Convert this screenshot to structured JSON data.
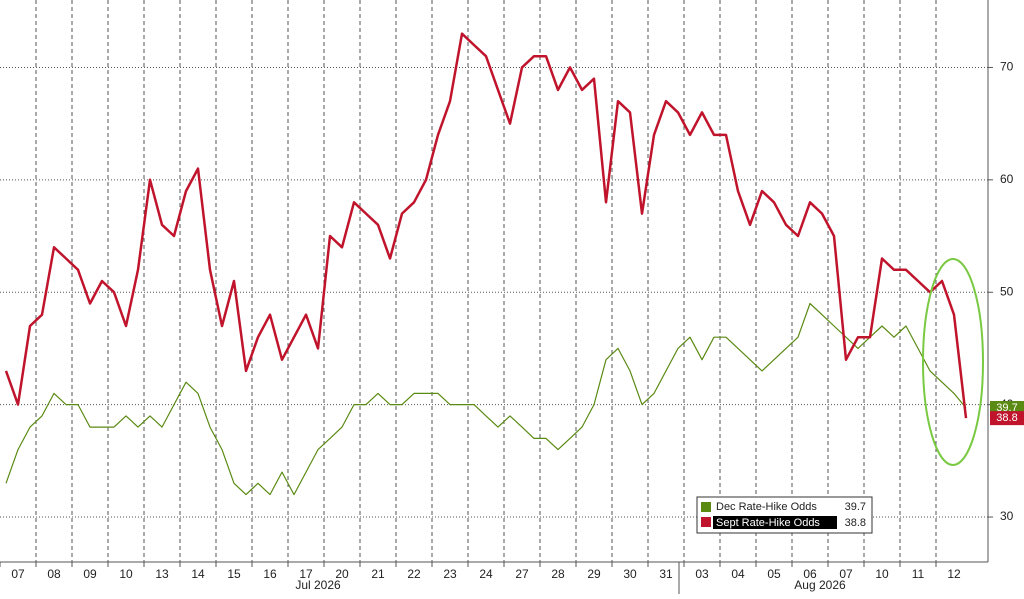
{
  "chart_data": {
    "type": "line",
    "categories": [
      "07",
      null,
      null,
      "08",
      null,
      null,
      "09",
      null,
      null,
      "10",
      null,
      null,
      "13",
      null,
      null,
      "14",
      null,
      null,
      "15",
      null,
      null,
      "16",
      null,
      null,
      "17",
      null,
      null,
      "20",
      null,
      null,
      "21",
      null,
      null,
      "22",
      null,
      null,
      "23",
      null,
      null,
      "24",
      null,
      null,
      "27",
      null,
      null,
      "28",
      null,
      null,
      "29",
      null,
      null,
      "30",
      null,
      null,
      "31",
      null,
      null,
      "03",
      null,
      null,
      "04",
      null,
      null,
      "05",
      null,
      null,
      "06",
      null,
      null,
      "07",
      null,
      null,
      "10",
      null,
      null,
      "11",
      null,
      null,
      "12",
      null,
      null
    ],
    "month_labels": [
      "Jul 2026",
      "Aug 2026"
    ],
    "series": [
      {
        "name": "Dec Rate-Hike Odds",
        "color": "#5a8a12",
        "values": [
          33,
          36,
          38,
          39,
          41,
          40,
          40,
          38,
          38,
          38,
          39,
          38,
          39,
          38,
          40,
          42,
          41,
          38,
          36,
          33,
          32,
          33,
          32,
          34,
          32,
          34,
          36,
          37,
          38,
          40,
          40,
          41,
          40,
          40,
          41,
          41,
          41,
          40,
          40,
          40,
          39,
          38,
          39,
          38,
          37,
          37,
          36,
          37,
          38,
          40,
          44,
          45,
          43,
          40,
          41,
          43,
          45,
          46,
          44,
          46,
          46,
          45,
          44,
          43,
          44,
          45,
          46,
          49,
          48,
          47,
          46,
          45,
          46,
          47,
          46,
          47,
          45,
          43,
          42,
          41,
          39.7
        ]
      },
      {
        "name": "Sept Rate-Hike Odds",
        "color": "#c0142c",
        "values": [
          43,
          40,
          47,
          48,
          54,
          53,
          52,
          49,
          51,
          50,
          47,
          52,
          60,
          56,
          55,
          59,
          61,
          52,
          47,
          51,
          43,
          46,
          48,
          44,
          46,
          48,
          45,
          55,
          54,
          58,
          57,
          56,
          53,
          57,
          58,
          60,
          64,
          67,
          73,
          72,
          71,
          68,
          65,
          70,
          71,
          71,
          68,
          70,
          68,
          69,
          58,
          67,
          66,
          57,
          64,
          67,
          66,
          64,
          66,
          64,
          64,
          59,
          56,
          59,
          58,
          56,
          55,
          58,
          57,
          55,
          44,
          46,
          46,
          53,
          52,
          52,
          51,
          50,
          51,
          48,
          38.8
        ]
      }
    ],
    "ylim": [
      26,
      76
    ],
    "yticks": [
      30,
      40,
      50,
      60,
      70
    ],
    "grid": true
  }
}
